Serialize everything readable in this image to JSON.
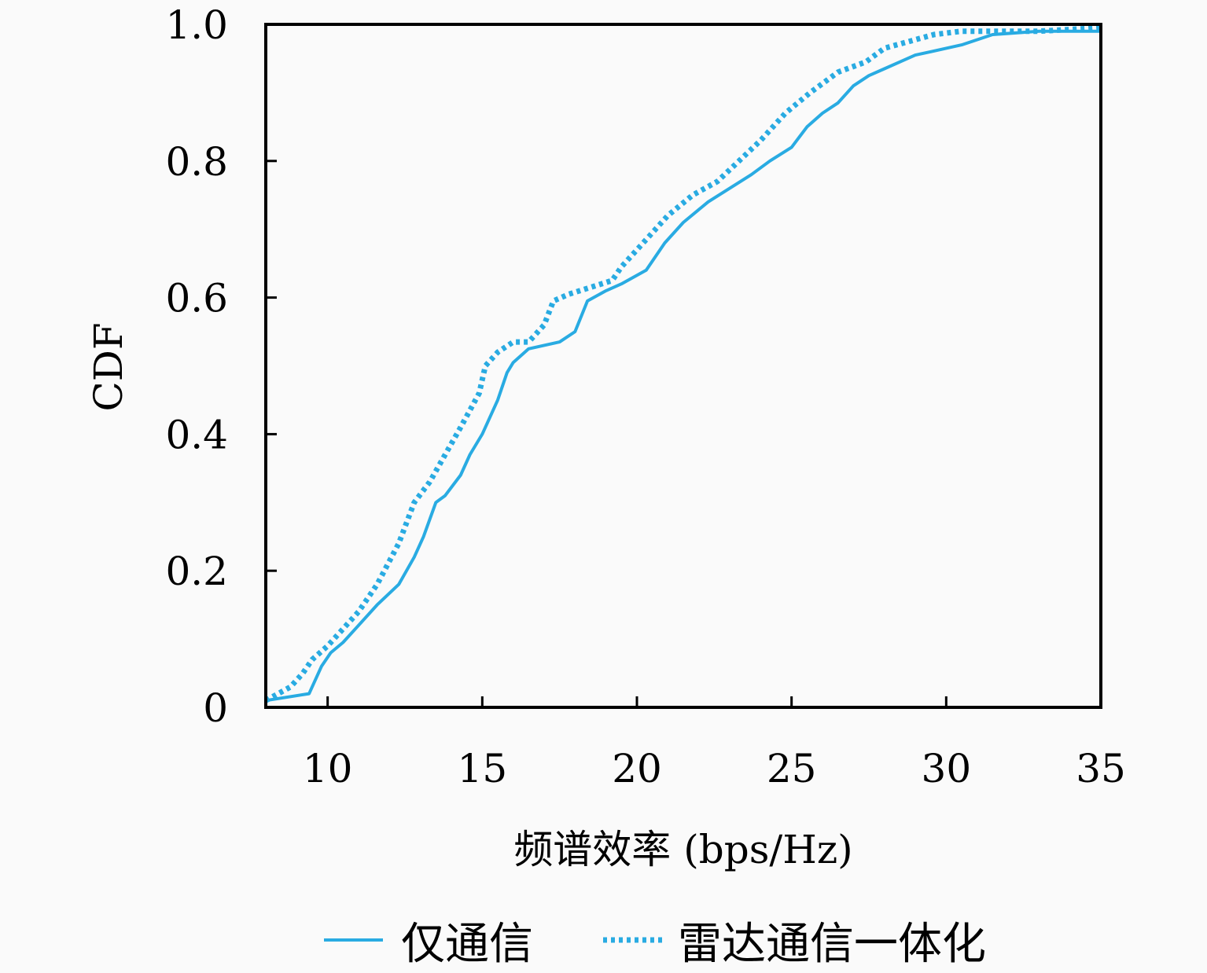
{
  "chart_data": {
    "type": "line",
    "xlabel": "频谱效率 (bps/Hz)",
    "ylabel": "CDF",
    "xlim": [
      8,
      35
    ],
    "ylim": [
      0,
      1.0
    ],
    "x_ticks": [
      10,
      15,
      20,
      25,
      30,
      35
    ],
    "y_ticks": [
      0,
      0.2,
      0.4,
      0.6,
      0.8,
      1.0
    ],
    "x_tick_labels": [
      "10",
      "15",
      "20",
      "25",
      "30",
      "35"
    ],
    "y_tick_labels": [
      "0",
      "0.2",
      "0.4",
      "0.6",
      "0.8",
      "1.0"
    ],
    "grid": false,
    "legend_position": "bottom",
    "series": [
      {
        "name": "仅通信",
        "style": "solid",
        "color": "#29abe2",
        "x": [
          8.0,
          9.4,
          9.8,
          10.1,
          10.5,
          11.0,
          11.6,
          12.3,
          12.8,
          13.1,
          13.5,
          13.8,
          14.3,
          14.6,
          15.0,
          15.5,
          15.8,
          16.0,
          16.5,
          17.5,
          18.0,
          18.4,
          19.0,
          19.5,
          20.3,
          20.9,
          21.5,
          22.3,
          23.0,
          23.7,
          24.3,
          25.0,
          25.5,
          26.0,
          26.5,
          27.0,
          27.5,
          28.0,
          28.5,
          29.0,
          29.5,
          30.5,
          31.5,
          33.0,
          35.0
        ],
        "y": [
          0.01,
          0.02,
          0.06,
          0.08,
          0.095,
          0.12,
          0.15,
          0.18,
          0.22,
          0.25,
          0.3,
          0.31,
          0.34,
          0.37,
          0.4,
          0.45,
          0.49,
          0.505,
          0.525,
          0.535,
          0.55,
          0.595,
          0.61,
          0.62,
          0.64,
          0.68,
          0.71,
          0.74,
          0.76,
          0.78,
          0.8,
          0.82,
          0.85,
          0.87,
          0.885,
          0.91,
          0.925,
          0.935,
          0.945,
          0.955,
          0.96,
          0.97,
          0.985,
          0.99,
          0.99
        ]
      },
      {
        "name": "雷达通信一体化",
        "style": "dotted",
        "color": "#29abe2",
        "x": [
          8.0,
          8.8,
          9.2,
          9.5,
          10.0,
          10.5,
          11.0,
          11.6,
          12.3,
          12.8,
          13.3,
          13.8,
          14.3,
          14.9,
          15.1,
          15.5,
          16.0,
          16.5,
          17.0,
          17.3,
          17.8,
          18.5,
          19.2,
          19.5,
          20.2,
          21.0,
          21.8,
          22.6,
          23.3,
          24.0,
          24.8,
          25.6,
          26.5,
          27.4,
          28.0,
          28.8,
          29.6,
          30.5,
          31.5,
          33.0,
          35.0
        ],
        "y": [
          0.01,
          0.03,
          0.05,
          0.07,
          0.09,
          0.115,
          0.14,
          0.18,
          0.24,
          0.3,
          0.33,
          0.37,
          0.41,
          0.46,
          0.5,
          0.52,
          0.535,
          0.535,
          0.56,
          0.595,
          0.605,
          0.615,
          0.625,
          0.645,
          0.68,
          0.72,
          0.75,
          0.77,
          0.8,
          0.83,
          0.87,
          0.9,
          0.93,
          0.945,
          0.965,
          0.975,
          0.985,
          0.99,
          0.99,
          0.99,
          0.995
        ]
      }
    ]
  }
}
